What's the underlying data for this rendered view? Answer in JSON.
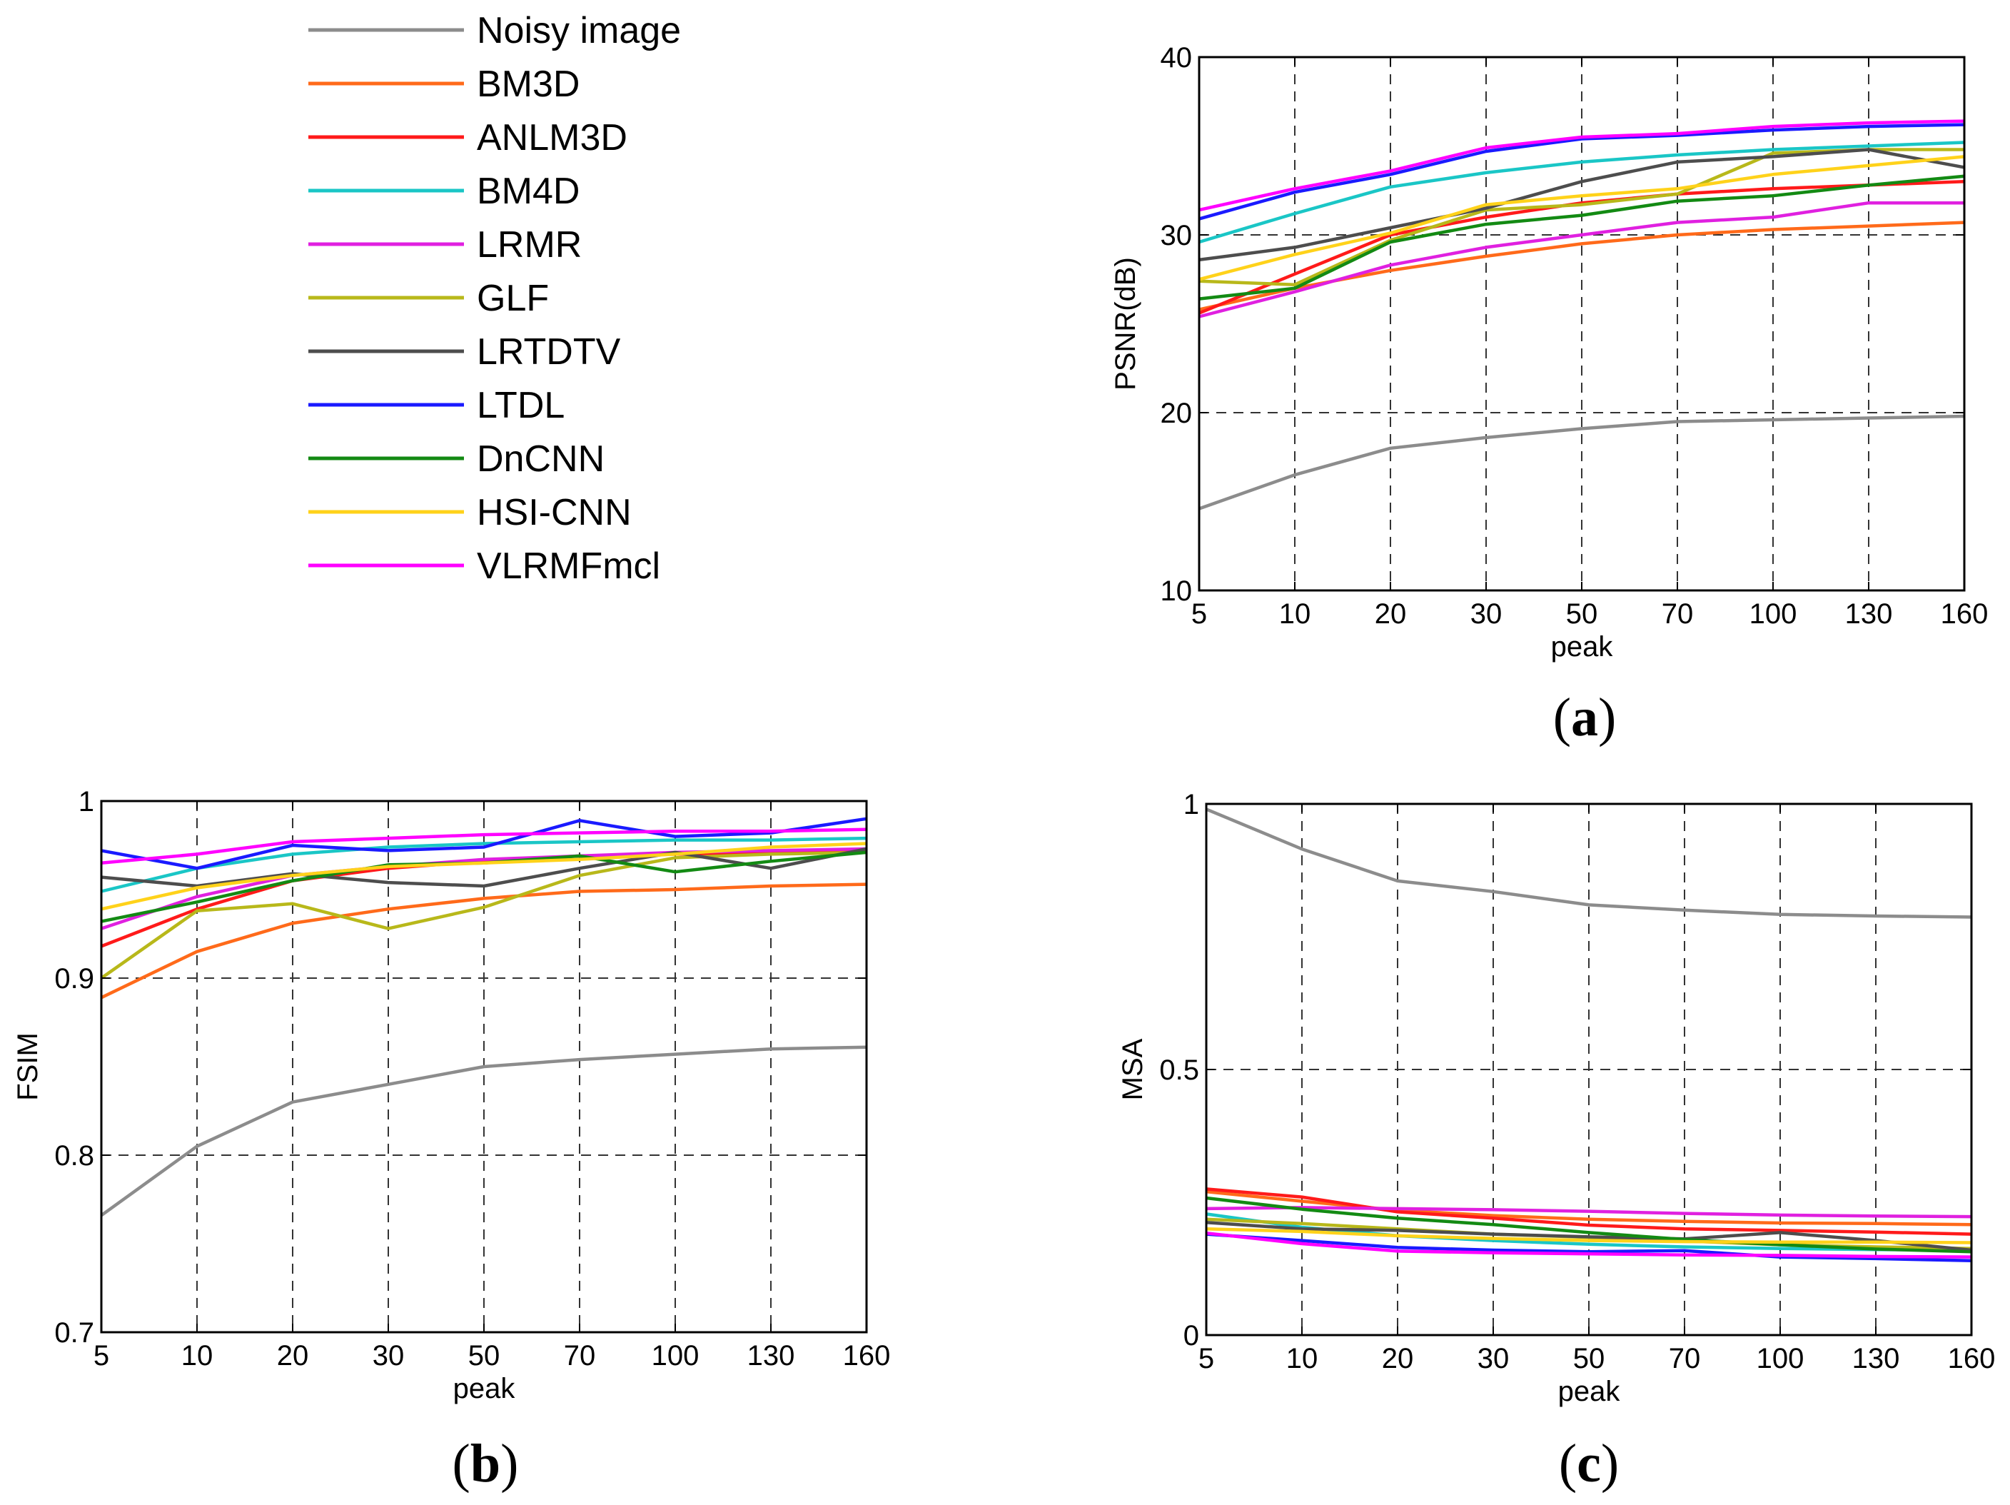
{
  "legend": {
    "entries": [
      {
        "name": "Noisy image",
        "color": "#8c8c8c"
      },
      {
        "name": "BM3D",
        "color": "#ff6a1a"
      },
      {
        "name": "ANLM3D",
        "color": "#ff1a1a"
      },
      {
        "name": "BM4D",
        "color": "#1ac6c6"
      },
      {
        "name": "LRMR",
        "color": "#e020e0"
      },
      {
        "name": "GLF",
        "color": "#b8b81a"
      },
      {
        "name": "LRTDTV",
        "color": "#4d4d4d"
      },
      {
        "name": "LTDL",
        "color": "#1a1aff"
      },
      {
        "name": "DnCNN",
        "color": "#138a13"
      },
      {
        "name": "HSI-CNN",
        "color": "#ffd21a"
      },
      {
        "name": "VLRMFmcl",
        "color": "#ff00ff"
      }
    ]
  },
  "chart_data": [
    {
      "type": "line",
      "caption_letter": "a",
      "xlabel": "peak",
      "ylabel": "PSNR(dB)",
      "categories": [
        "5",
        "10",
        "20",
        "30",
        "50",
        "70",
        "100",
        "130",
        "160"
      ],
      "ylim": [
        10,
        40
      ],
      "yticks": [
        "10",
        "20",
        "30",
        "40"
      ],
      "series": [
        {
          "name": "Noisy image",
          "values": [
            14.6,
            16.5,
            18.0,
            18.6,
            19.1,
            19.5,
            19.6,
            19.7,
            19.8
          ]
        },
        {
          "name": "BM3D",
          "values": [
            25.8,
            27.0,
            28.0,
            28.8,
            29.5,
            30.0,
            30.3,
            30.5,
            30.7
          ]
        },
        {
          "name": "ANLM3D",
          "values": [
            25.6,
            27.8,
            30.0,
            31.0,
            31.8,
            32.3,
            32.6,
            32.8,
            33.0
          ]
        },
        {
          "name": "BM4D",
          "values": [
            29.6,
            31.2,
            32.7,
            33.5,
            34.1,
            34.5,
            34.8,
            35.0,
            35.2
          ]
        },
        {
          "name": "LRMR",
          "values": [
            25.4,
            26.8,
            28.3,
            29.3,
            30.0,
            30.7,
            31.0,
            31.8,
            31.8
          ]
        },
        {
          "name": "GLF",
          "values": [
            27.4,
            27.2,
            29.7,
            31.4,
            31.7,
            32.3,
            34.6,
            34.8,
            34.8
          ]
        },
        {
          "name": "LRTDTV",
          "values": [
            28.6,
            29.3,
            30.4,
            31.5,
            33.0,
            34.1,
            34.4,
            34.8,
            33.8
          ]
        },
        {
          "name": "LTDL",
          "values": [
            30.9,
            32.4,
            33.4,
            34.7,
            35.4,
            35.6,
            35.9,
            36.1,
            36.2
          ]
        },
        {
          "name": "DnCNN",
          "values": [
            26.4,
            27.0,
            29.6,
            30.6,
            31.1,
            31.9,
            32.2,
            32.8,
            33.3
          ]
        },
        {
          "name": "HSI-CNN",
          "values": [
            27.5,
            28.9,
            30.1,
            31.7,
            32.2,
            32.6,
            33.4,
            33.9,
            34.4
          ]
        },
        {
          "name": "VLRMFmcl",
          "values": [
            31.4,
            32.6,
            33.6,
            34.9,
            35.5,
            35.7,
            36.1,
            36.3,
            36.4
          ]
        }
      ]
    },
    {
      "type": "line",
      "caption_letter": "b",
      "xlabel": "peak",
      "ylabel": "FSIM",
      "categories": [
        "5",
        "10",
        "20",
        "30",
        "50",
        "70",
        "100",
        "130",
        "160"
      ],
      "ylim": [
        0.7,
        1
      ],
      "yticks": [
        "0.7",
        "0.8",
        "0.9",
        "1"
      ],
      "series": [
        {
          "name": "Noisy image",
          "values": [
            0.766,
            0.805,
            0.83,
            0.84,
            0.85,
            0.854,
            0.857,
            0.86,
            0.861
          ]
        },
        {
          "name": "BM3D",
          "values": [
            0.889,
            0.915,
            0.931,
            0.939,
            0.945,
            0.949,
            0.95,
            0.952,
            0.953
          ]
        },
        {
          "name": "ANLM3D",
          "values": [
            0.918,
            0.939,
            0.955,
            0.962,
            0.966,
            0.969,
            0.97,
            0.971,
            0.972
          ]
        },
        {
          "name": "BM4D",
          "values": [
            0.949,
            0.962,
            0.97,
            0.974,
            0.976,
            0.977,
            0.978,
            0.978,
            0.979
          ]
        },
        {
          "name": "LRMR",
          "values": [
            0.928,
            0.946,
            0.958,
            0.963,
            0.967,
            0.969,
            0.971,
            0.972,
            0.973
          ]
        },
        {
          "name": "GLF",
          "values": [
            0.9,
            0.938,
            0.942,
            0.928,
            0.94,
            0.958,
            0.968,
            0.97,
            0.971
          ]
        },
        {
          "name": "LRTDTV",
          "values": [
            0.957,
            0.952,
            0.959,
            0.954,
            0.952,
            0.962,
            0.971,
            0.962,
            0.973
          ]
        },
        {
          "name": "LTDL",
          "values": [
            0.972,
            0.962,
            0.975,
            0.972,
            0.974,
            0.989,
            0.98,
            0.982,
            0.99
          ]
        },
        {
          "name": "DnCNN",
          "values": [
            0.932,
            0.943,
            0.955,
            0.964,
            0.965,
            0.969,
            0.96,
            0.966,
            0.971
          ]
        },
        {
          "name": "HSI-CNN",
          "values": [
            0.939,
            0.951,
            0.958,
            0.963,
            0.965,
            0.967,
            0.97,
            0.974,
            0.976
          ]
        },
        {
          "name": "VLRMFmcl",
          "values": [
            0.965,
            0.97,
            0.977,
            0.979,
            0.981,
            0.982,
            0.983,
            0.983,
            0.984
          ]
        }
      ]
    },
    {
      "type": "line",
      "caption_letter": "c",
      "xlabel": "peak",
      "ylabel": "MSA",
      "categories": [
        "5",
        "10",
        "20",
        "30",
        "50",
        "70",
        "100",
        "130",
        "160"
      ],
      "ylim": [
        0,
        1
      ],
      "yticks": [
        "0",
        "0.5",
        "1"
      ],
      "series": [
        {
          "name": "Noisy image",
          "values": [
            0.99,
            0.915,
            0.855,
            0.835,
            0.81,
            0.8,
            0.792,
            0.789,
            0.787
          ]
        },
        {
          "name": "BM3D",
          "values": [
            0.27,
            0.252,
            0.235,
            0.225,
            0.218,
            0.214,
            0.211,
            0.21,
            0.208
          ]
        },
        {
          "name": "ANLM3D",
          "values": [
            0.275,
            0.26,
            0.232,
            0.22,
            0.207,
            0.2,
            0.197,
            0.194,
            0.19
          ]
        },
        {
          "name": "BM4D",
          "values": [
            0.228,
            0.203,
            0.187,
            0.178,
            0.171,
            0.166,
            0.163,
            0.161,
            0.16
          ]
        },
        {
          "name": "LRMR",
          "values": [
            0.238,
            0.24,
            0.238,
            0.236,
            0.233,
            0.229,
            0.226,
            0.224,
            0.223
          ]
        },
        {
          "name": "GLF",
          "values": [
            0.218,
            0.21,
            0.2,
            0.19,
            0.184,
            0.177,
            0.17,
            0.166,
            0.163
          ]
        },
        {
          "name": "LRTDTV",
          "values": [
            0.212,
            0.2,
            0.197,
            0.19,
            0.185,
            0.181,
            0.193,
            0.178,
            0.16
          ]
        },
        {
          "name": "LTDL",
          "values": [
            0.19,
            0.178,
            0.165,
            0.16,
            0.157,
            0.159,
            0.147,
            0.144,
            0.14
          ]
        },
        {
          "name": "DnCNN",
          "values": [
            0.258,
            0.237,
            0.22,
            0.208,
            0.193,
            0.18,
            0.17,
            0.162,
            0.157
          ]
        },
        {
          "name": "HSI-CNN",
          "values": [
            0.2,
            0.195,
            0.187,
            0.182,
            0.178,
            0.176,
            0.175,
            0.175,
            0.174
          ]
        },
        {
          "name": "VLRMFmcl",
          "values": [
            0.192,
            0.172,
            0.158,
            0.155,
            0.153,
            0.151,
            0.15,
            0.148,
            0.147
          ]
        }
      ]
    }
  ]
}
